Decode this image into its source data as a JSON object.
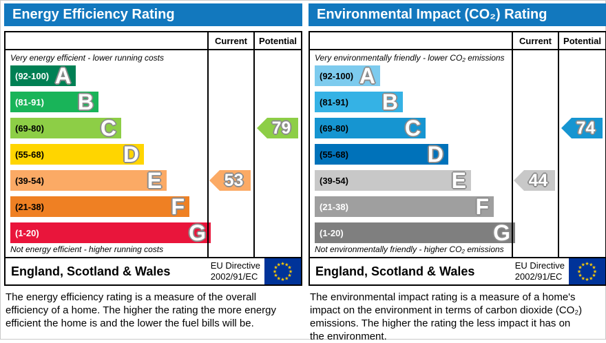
{
  "theme": {
    "header_bg": "#1278be",
    "eu_flag_blue": "#003399",
    "eu_star_yellow": "#ffcc00",
    "outline_gray": "#8c8c8c"
  },
  "chart_data": [
    {
      "type": "bar",
      "title": "Energy Efficiency Rating",
      "columns": [
        "Current",
        "Potential"
      ],
      "top_note": "Very energy efficient - lower running costs",
      "bottom_note": "Not energy efficient - higher running costs",
      "categories": [
        "A",
        "B",
        "C",
        "D",
        "E",
        "F",
        "G"
      ],
      "band_ranges": [
        "(92-100)",
        "(81-91)",
        "(69-80)",
        "(55-68)",
        "(39-54)",
        "(21-38)",
        "(1-20)"
      ],
      "band_colors": [
        "#008054",
        "#19b459",
        "#8dce46",
        "#ffd500",
        "#fbaa65",
        "#ef8023",
        "#e9153b"
      ],
      "band_label_colors": [
        "#ffffff",
        "#ffffff",
        "#000000",
        "#000000",
        "#000000",
        "#000000",
        "#ffffff"
      ],
      "current": {
        "value": 53,
        "band": "E",
        "color": "#fbaa65"
      },
      "potential": {
        "value": 79,
        "band": "C",
        "color": "#8dce46"
      },
      "footer_region": "England, Scotland & Wales",
      "directive_line1": "EU Directive",
      "directive_line2": "2002/91/EC",
      "description": "The energy efficiency rating is a measure of the overall efficiency of a home. The higher the rating the more energy efficient the home is and the lower the fuel bills will be."
    },
    {
      "type": "bar",
      "title": "Environmental Impact (CO₂) Rating",
      "columns": [
        "Current",
        "Potential"
      ],
      "top_note": "Very environmentally friendly - lower CO₂ emissions",
      "bottom_note": "Not environmentally friendly - higher CO₂ emissions",
      "categories": [
        "A",
        "B",
        "C",
        "D",
        "E",
        "F",
        "G"
      ],
      "band_ranges": [
        "(92-100)",
        "(81-91)",
        "(69-80)",
        "(55-68)",
        "(39-54)",
        "(21-38)",
        "(1-20)"
      ],
      "band_colors": [
        "#7dcbee",
        "#35b2e5",
        "#1695d1",
        "#0072ba",
        "#c8c8c8",
        "#9f9f9f",
        "#7f7f7f"
      ],
      "band_label_colors": [
        "#000000",
        "#000000",
        "#000000",
        "#000000",
        "#000000",
        "#ffffff",
        "#ffffff"
      ],
      "current": {
        "value": 44,
        "band": "E",
        "color": "#c8c8c8"
      },
      "potential": {
        "value": 74,
        "band": "C",
        "color": "#1695d1"
      },
      "footer_region": "England, Scotland & Wales",
      "directive_line1": "EU Directive",
      "directive_line2": "2002/91/EC",
      "description": "The environmental impact rating is a measure of a home's impact on the environment in terms of carbon dioxide (CO₂) emissions. The higher the rating the less impact it has on the environment."
    }
  ]
}
